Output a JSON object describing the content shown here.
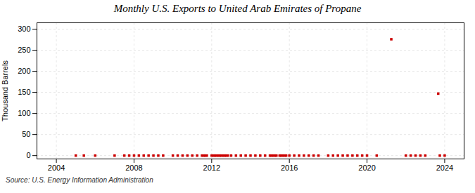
{
  "chart_data": {
    "type": "scatter",
    "title": "Monthly U.S. Exports to United Arab Emirates of Propane",
    "ylabel": "Thousand Barrels",
    "source": "Source: U.S. Energy Information Administration",
    "x": [
      2005.0,
      2005.417,
      2006.0,
      2007.0,
      2007.5,
      2007.75,
      2008.0,
      2008.25,
      2008.5,
      2008.75,
      2009.0,
      2009.25,
      2009.5,
      2010.0,
      2010.25,
      2010.5,
      2010.75,
      2011.0,
      2011.25,
      2011.5,
      2011.583,
      2011.667,
      2011.75,
      2012.0,
      2012.083,
      2012.167,
      2012.25,
      2012.333,
      2012.417,
      2012.5,
      2012.583,
      2012.667,
      2012.75,
      2012.833,
      2013.0,
      2013.25,
      2013.5,
      2013.75,
      2014.0,
      2014.25,
      2014.5,
      2014.75,
      2015.0,
      2015.083,
      2015.167,
      2015.25,
      2015.333,
      2015.5,
      2015.583,
      2015.667,
      2015.75,
      2015.833,
      2016.0,
      2016.25,
      2016.5,
      2016.75,
      2017.0,
      2017.25,
      2017.5,
      2018.0,
      2018.25,
      2018.5,
      2018.75,
      2019.0,
      2019.25,
      2019.5,
      2019.75,
      2020.0,
      2020.5,
      2021.25,
      2022.0,
      2022.25,
      2022.5,
      2022.75,
      2023.0,
      2023.667,
      2023.75,
      2024.0
    ],
    "values": [
      0,
      0,
      0,
      0,
      0,
      0,
      0,
      0,
      0,
      0,
      0,
      0,
      0,
      0,
      0,
      0,
      0,
      0,
      0,
      0,
      0,
      0,
      0,
      0,
      0,
      0,
      0,
      0,
      0,
      0,
      0,
      0,
      0,
      0,
      0,
      0,
      0,
      0,
      0,
      0,
      0,
      0,
      0,
      0,
      0,
      0,
      0,
      0,
      0,
      0,
      0,
      0,
      0,
      0,
      0,
      0,
      0,
      0,
      0,
      0,
      0,
      0,
      0,
      0,
      0,
      0,
      0,
      0,
      0,
      276,
      0,
      0,
      0,
      0,
      0,
      147,
      0,
      0
    ],
    "color": "#cc0000",
    "marker": "square",
    "xlim": [
      2003.0,
      2025.0
    ],
    "ylim": [
      -8,
      315
    ],
    "xticks": [
      2004,
      2008,
      2012,
      2016,
      2020,
      2024
    ],
    "yticks": [
      0,
      50,
      100,
      150,
      200,
      250,
      300
    ],
    "grid": true
  }
}
